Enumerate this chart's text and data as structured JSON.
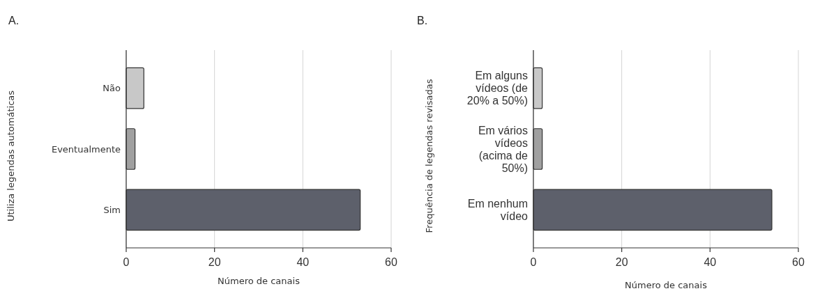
{
  "chart_data": [
    {
      "type": "bar",
      "orientation": "horizontal",
      "title": "A.",
      "ylabel": "Utiliza legendas automáticas",
      "xlabel": "Número de canais",
      "categories": [
        "Não",
        "Eventualmente",
        "Sim"
      ],
      "values": [
        4,
        2,
        53
      ],
      "colors": [
        "#c8c8c8",
        "#a0a0a0",
        "#5d606b"
      ],
      "xlim": [
        0,
        60
      ],
      "xticks": [
        0,
        20,
        40,
        60
      ],
      "grid": "x"
    },
    {
      "type": "bar",
      "orientation": "horizontal",
      "title": "B.",
      "ylabel": "Frequência de legendas revisadas",
      "xlabel": "Número de canais",
      "categories": [
        "Em alguns vídeos (de 20% a 50%)",
        "Em vários vídeos (acima de 50%)",
        "Em nenhum vídeo"
      ],
      "values": [
        2,
        2,
        54
      ],
      "colors": [
        "#c8c8c8",
        "#a0a0a0",
        "#5d606b"
      ],
      "xlim": [
        0,
        60
      ],
      "xticks": [
        0,
        20,
        40,
        60
      ],
      "grid": "x"
    }
  ]
}
